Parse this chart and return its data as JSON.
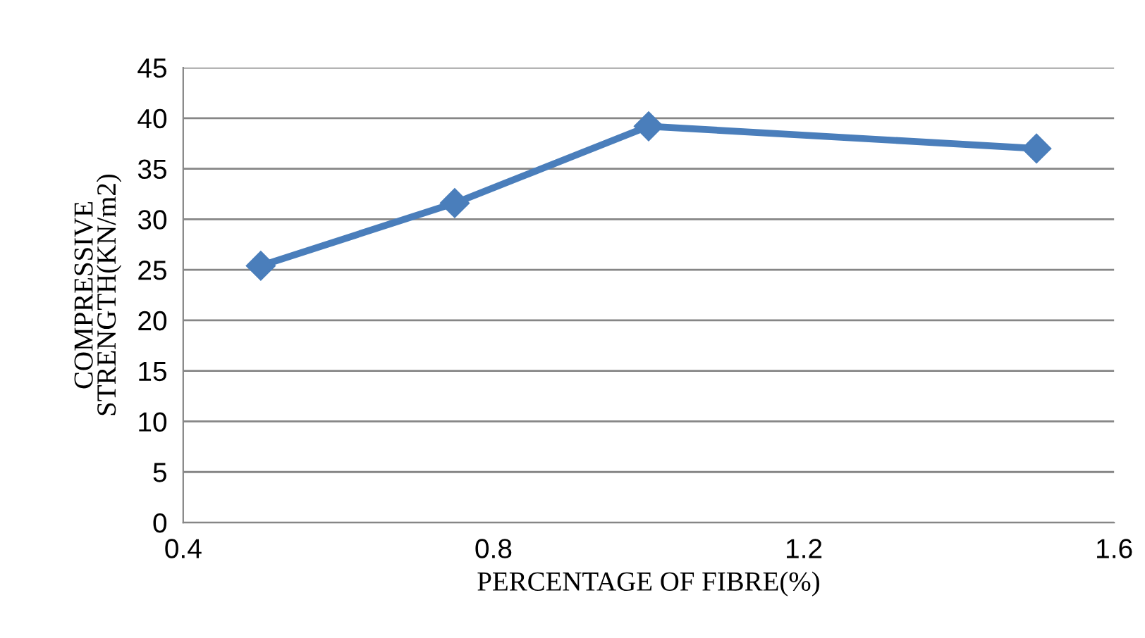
{
  "chart_data": {
    "type": "line",
    "xlabel": "PERCENTAGE OF FIBRE(%)",
    "ylabel": "COMPRESSIVE\nSTRENGTH(KN/m2)",
    "x": [
      0.5,
      0.75,
      1.0,
      1.5
    ],
    "series": [
      {
        "color": "#4a7ebb",
        "values": [
          25.4,
          31.6,
          39.2,
          37.0
        ]
      }
    ],
    "xlim": [
      0.4,
      1.6
    ],
    "xticks": [
      0.4,
      0.8,
      1.2,
      1.6
    ],
    "ylim": [
      0,
      45
    ],
    "yticks": [
      0,
      5,
      10,
      15,
      20,
      25,
      30,
      35,
      40,
      45
    ],
    "grid": "y",
    "marker": "diamond",
    "line_style": "solid",
    "legend": false
  }
}
